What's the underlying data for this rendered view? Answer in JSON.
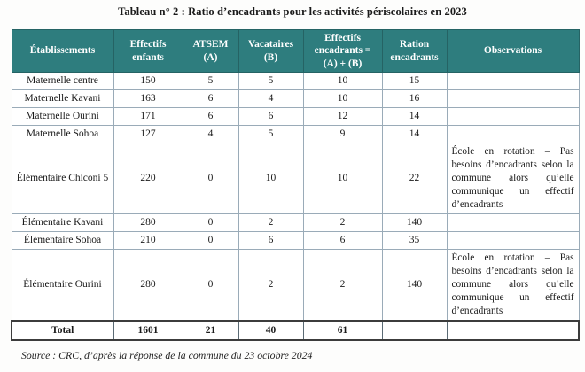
{
  "title": "Tableau n° 2 : Ratio d’encadrants pour les activités périscolaires en 2023",
  "source": "Source : CRC, d’après la réponse de la commune du 23 octobre 2024",
  "colors": {
    "header_bg": "#2e7d7e",
    "header_text": "#ffffff",
    "grid_border": "#9aabb8",
    "total_border": "#3c3c3c"
  },
  "table": {
    "headers": [
      "Établissements",
      "Effectifs enfants",
      "ATSEM (A)",
      "Vacataires (B)",
      "Effectifs encadrants = (A) + (B)",
      "Ration encadrants",
      "Observations"
    ],
    "observation_note": "École en rotation – Pas besoins d’encadrants selon la commune alors qu’elle communique un effectif d’encadrants",
    "rows": [
      {
        "cells": [
          "Maternelle centre",
          "150",
          "5",
          "5",
          "10",
          "15",
          ""
        ]
      },
      {
        "cells": [
          "Maternelle Kavani",
          "163",
          "6",
          "4",
          "10",
          "16",
          ""
        ]
      },
      {
        "cells": [
          "Maternelle Ourini",
          "171",
          "6",
          "6",
          "12",
          "14",
          ""
        ]
      },
      {
        "cells": [
          "Maternelle Sohoa",
          "127",
          "4",
          "5",
          "9",
          "14",
          ""
        ]
      },
      {
        "cells": [
          "Élémentaire Chiconi 5",
          "220",
          "0",
          "10",
          "10",
          "22",
          "École en rotation – Pas besoins d’encadrants selon la commune alors qu’elle communique un effectif d’encadrants"
        ]
      },
      {
        "cells": [
          "Élémentaire Kavani",
          "280",
          "0",
          "2",
          "2",
          "140",
          ""
        ]
      },
      {
        "cells": [
          "Élémentaire Sohoa",
          "210",
          "0",
          "6",
          "6",
          "35",
          ""
        ]
      },
      {
        "cells": [
          "Élémentaire Ourini",
          "280",
          "0",
          "2",
          "2",
          "140",
          "École en rotation – Pas besoins d’encadrants selon la commune alors qu’elle communique un effectif d’encadrants"
        ]
      }
    ],
    "total_row": {
      "cells": [
        "Total",
        "1601",
        "21",
        "40",
        "61",
        "",
        ""
      ]
    }
  }
}
